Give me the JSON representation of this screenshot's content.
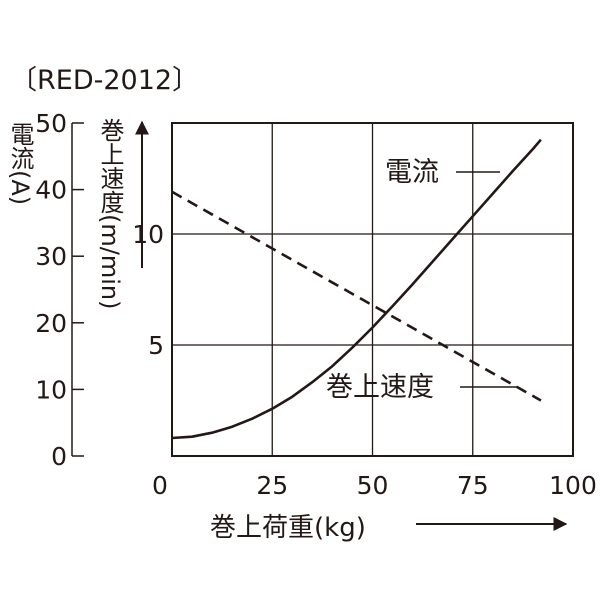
{
  "model_label": "〔RED-2012〕",
  "chart_data": {
    "type": "line",
    "xlabel": "巻上荷重(kg)",
    "xlim": [
      0,
      100
    ],
    "x_ticks": [
      0,
      25,
      50,
      75,
      100
    ],
    "ylabel_left": "電流(A)",
    "ylim_left": [
      0,
      50
    ],
    "y_ticks_left": [
      0,
      10,
      20,
      30,
      40,
      50
    ],
    "ylabel_right": "巻上速度(m/min)",
    "ylim_right": [
      0,
      15
    ],
    "y_ticks_right": [
      5,
      10
    ],
    "grid": true,
    "series": [
      {
        "name": "電流",
        "axis": "left",
        "style": "solid",
        "x": [
          0,
          5,
          10,
          15,
          20,
          25,
          30,
          35,
          40,
          45,
          50,
          55,
          60,
          65,
          70,
          75,
          80,
          85,
          90,
          92
        ],
        "y": [
          2.7,
          2.9,
          3.5,
          4.4,
          5.6,
          7.1,
          8.9,
          11.1,
          13.5,
          16.3,
          19.3,
          22.5,
          25.8,
          29.2,
          32.6,
          36.0,
          39.4,
          42.8,
          46.1,
          47.5
        ]
      },
      {
        "name": "巻上速度",
        "axis": "right",
        "style": "dashed",
        "x": [
          0,
          92
        ],
        "y": [
          11.9,
          2.5
        ]
      }
    ]
  }
}
